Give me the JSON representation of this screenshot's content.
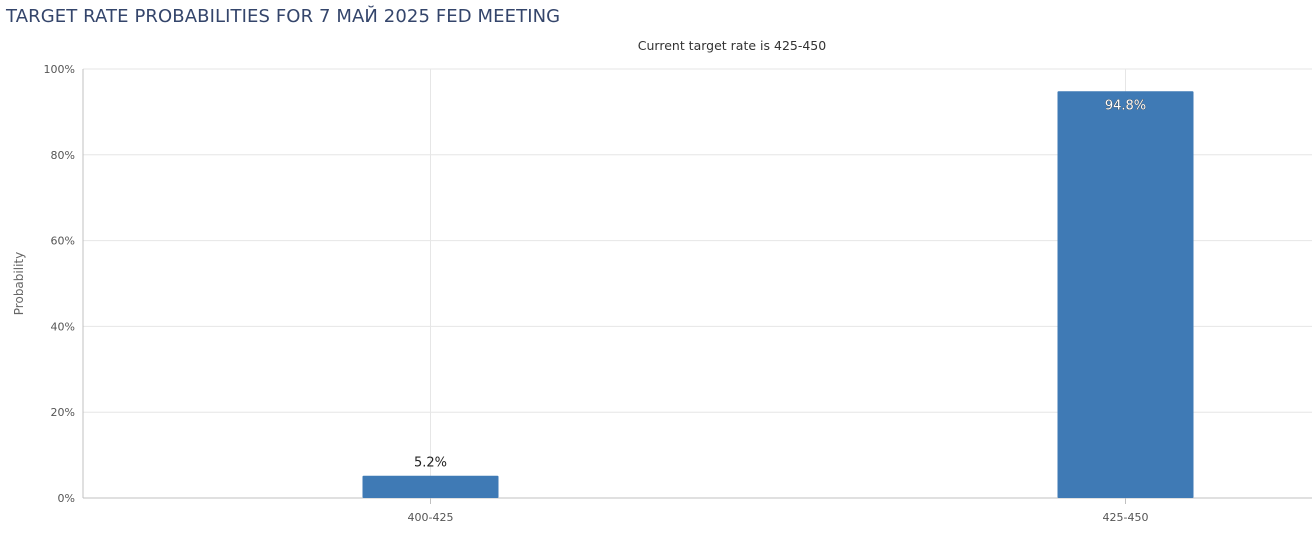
{
  "header": {
    "title": "TARGET RATE PROBABILITIES FOR 7 МАЙ 2025 FED MEETING",
    "subtitle": "Current target rate is 425-450"
  },
  "colors": {
    "bar": "#3f7ab5",
    "grid": "#e6e6e6",
    "axis": "#c0c0c0",
    "title": "#34456b"
  },
  "chart_data": {
    "type": "bar",
    "title": "TARGET RATE PROBABILITIES FOR 7 МАЙ 2025 FED MEETING",
    "subtitle": "Current target rate is 425-450",
    "xlabel": "",
    "ylabel": "Probability",
    "categories": [
      "400-425",
      "425-450"
    ],
    "values": [
      5.2,
      94.8
    ],
    "data_labels": [
      "5.2%",
      "94.8%"
    ],
    "ylim": [
      0,
      100
    ],
    "y_ticks": [
      0,
      20,
      40,
      60,
      80,
      100
    ],
    "y_tick_labels": [
      "0%",
      "20%",
      "40%",
      "60%",
      "80%",
      "100%"
    ],
    "grid": true,
    "legend": "none"
  }
}
